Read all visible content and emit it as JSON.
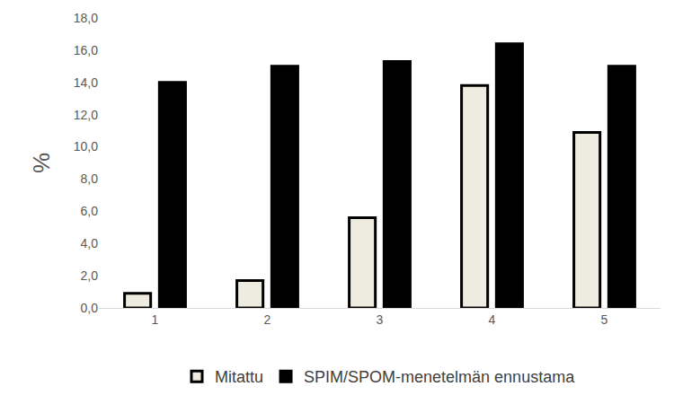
{
  "chart_data": {
    "type": "bar",
    "y_label": "%",
    "categories": [
      "1",
      "2",
      "3",
      "4",
      "5"
    ],
    "series": [
      {
        "name": "Mitattu",
        "color": "#eeece1",
        "values": [
          0.9,
          1.7,
          5.6,
          13.8,
          10.9
        ]
      },
      {
        "name": "SPIM/SPOM-menetelmän ennustama",
        "color": "#000000",
        "values": [
          14.0,
          15.0,
          15.3,
          16.4,
          15.0
        ]
      }
    ],
    "ylim": [
      0,
      18
    ],
    "yticks": [
      {
        "value": 0,
        "label": "0,0"
      },
      {
        "value": 2,
        "label": "2,0"
      },
      {
        "value": 4,
        "label": "4,0"
      },
      {
        "value": 6,
        "label": "6,0"
      },
      {
        "value": 8,
        "label": "8,0"
      },
      {
        "value": 10,
        "label": "10,0"
      },
      {
        "value": 12,
        "label": "12,0"
      },
      {
        "value": 14,
        "label": "14,0"
      },
      {
        "value": 16,
        "label": "16,0"
      },
      {
        "value": 18,
        "label": "18,0"
      }
    ],
    "grid": false,
    "legend": "bottom"
  }
}
